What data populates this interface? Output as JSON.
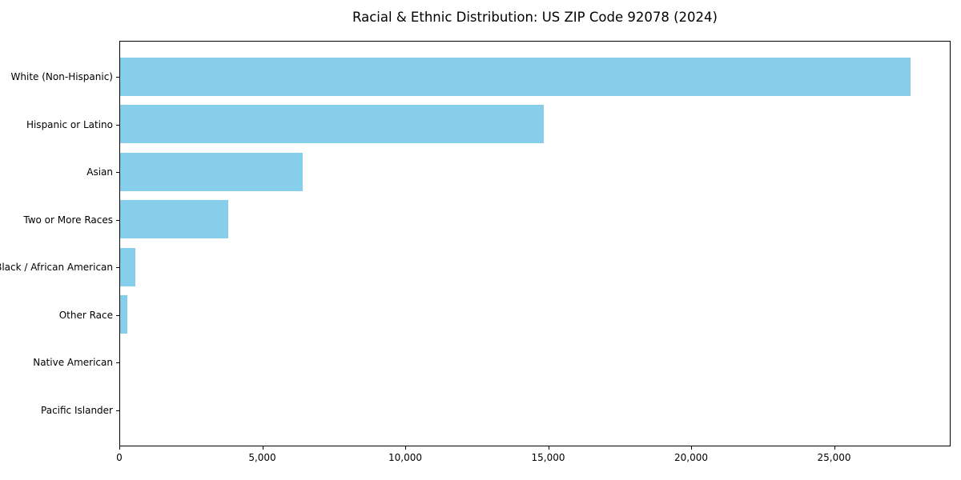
{
  "title": "Racial & Ethnic Distribution: US ZIP Code 92078 (2024)",
  "colors": {
    "bar": "#87CEEB",
    "text": "#000000",
    "spine": "#000000",
    "background": "#FFFFFF"
  },
  "chart_data": {
    "type": "bar",
    "orientation": "horizontal",
    "title": "Racial & Ethnic Distribution: US ZIP Code 92078 (2024)",
    "categories": [
      "White (Non-Hispanic)",
      "Hispanic or Latino",
      "Asian",
      "Two or More Races",
      "Black / African American",
      "Other Race",
      "Native American",
      "Pacific Islander"
    ],
    "values": [
      27650,
      14820,
      6390,
      3780,
      530,
      250,
      0,
      0
    ],
    "xlabel": "",
    "ylabel": "",
    "xlim": [
      0,
      29075
    ],
    "x_ticks": [
      0,
      5000,
      10000,
      15000,
      20000,
      25000
    ],
    "x_tick_labels": [
      "0",
      "5,000",
      "10,000",
      "15,000",
      "20,000",
      "25,000"
    ],
    "bar_color": "#87CEEB",
    "grid": false,
    "legend_position": "none"
  }
}
